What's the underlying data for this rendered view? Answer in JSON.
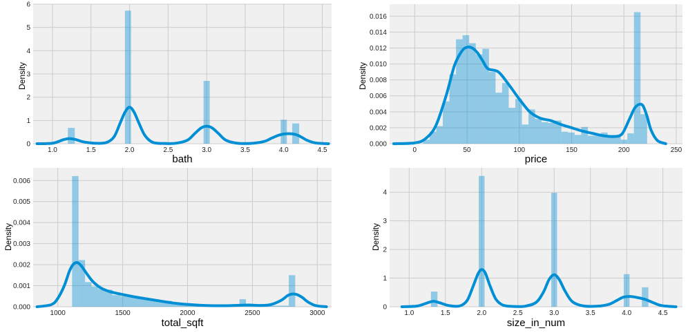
{
  "style": {
    "plot_background": "#f0f0f0",
    "grid_color": "#cbcbcb",
    "hist_color": "#008fd5",
    "hist_alpha": 0.4,
    "kde_color": "#008fd5"
  },
  "chart_data": [
    {
      "type": "histogram+kde",
      "xlabel": "bath",
      "ylabel": "Density",
      "xlim": [
        0.75,
        4.62
      ],
      "ylim": [
        0,
        6
      ],
      "xticks": [
        1.0,
        1.5,
        2.0,
        2.5,
        3.0,
        3.5,
        4.0,
        4.5
      ],
      "yticks": [
        0,
        1,
        2,
        3,
        4,
        5,
        6
      ],
      "xtick_labels": [
        "1.0",
        "1.5",
        "2.0",
        "2.5",
        "3.0",
        "3.5",
        "4.0",
        "4.5"
      ],
      "ytick_labels": [
        "0",
        "1",
        "2",
        "3",
        "4",
        "5",
        "6"
      ],
      "bins": [
        {
          "x0": 1.2,
          "x1": 1.29,
          "density": 0.68
        },
        {
          "x0": 1.94,
          "x1": 2.02,
          "density": 5.72
        },
        {
          "x0": 2.96,
          "x1": 3.04,
          "density": 2.7
        },
        {
          "x0": 3.96,
          "x1": 4.04,
          "density": 1.03
        },
        {
          "x0": 4.11,
          "x1": 4.2,
          "density": 0.87
        }
      ],
      "kde": {
        "x": [
          0.8,
          1.0,
          1.1,
          1.15,
          1.22,
          1.3,
          1.4,
          1.55,
          1.7,
          1.8,
          1.88,
          1.94,
          2.0,
          2.06,
          2.12,
          2.2,
          2.3,
          2.45,
          2.6,
          2.75,
          2.85,
          2.93,
          3.0,
          3.07,
          3.15,
          3.25,
          3.4,
          3.6,
          3.75,
          3.85,
          3.95,
          4.05,
          4.15,
          4.22,
          4.3,
          4.4,
          4.5,
          4.58
        ],
        "y": [
          0.0,
          0.02,
          0.12,
          0.18,
          0.22,
          0.18,
          0.08,
          0.02,
          0.05,
          0.3,
          0.9,
          1.35,
          1.57,
          1.35,
          0.9,
          0.35,
          0.06,
          0.01,
          0.02,
          0.15,
          0.45,
          0.68,
          0.75,
          0.68,
          0.45,
          0.15,
          0.02,
          0.02,
          0.1,
          0.25,
          0.38,
          0.43,
          0.4,
          0.3,
          0.15,
          0.04,
          0.01,
          0.0
        ]
      }
    },
    {
      "type": "histogram+kde",
      "xlabel": "price",
      "ylabel": "Density",
      "xlim": [
        -24,
        256
      ],
      "ylim": [
        0,
        0.0175
      ],
      "xticks": [
        0,
        50,
        100,
        150,
        200,
        250
      ],
      "yticks": [
        0,
        0.002,
        0.004,
        0.006,
        0.008,
        0.01,
        0.012,
        0.014,
        0.016
      ],
      "xtick_labels": [
        "0",
        "50",
        "100",
        "150",
        "200",
        "250"
      ],
      "ytick_labels": [
        "0.000",
        "0.002",
        "0.004",
        "0.006",
        "0.008",
        "0.010",
        "0.012",
        "0.014",
        "0.016"
      ],
      "bins": [
        {
          "x0": 8,
          "x1": 14.3,
          "density": 0.0005
        },
        {
          "x0": 14.3,
          "x1": 20.6,
          "density": 0.0015
        },
        {
          "x0": 20.6,
          "x1": 26.9,
          "density": 0.0022
        },
        {
          "x0": 26.9,
          "x1": 33.2,
          "density": 0.0053
        },
        {
          "x0": 33.2,
          "x1": 39.5,
          "density": 0.0087
        },
        {
          "x0": 39.5,
          "x1": 45.8,
          "density": 0.0131
        },
        {
          "x0": 45.8,
          "x1": 52.1,
          "density": 0.0136
        },
        {
          "x0": 52.1,
          "x1": 58.4,
          "density": 0.0126
        },
        {
          "x0": 58.4,
          "x1": 64.7,
          "density": 0.0112
        },
        {
          "x0": 64.7,
          "x1": 71.0,
          "density": 0.0119
        },
        {
          "x0": 71.0,
          "x1": 77.3,
          "density": 0.009
        },
        {
          "x0": 77.3,
          "x1": 83.6,
          "density": 0.0064
        },
        {
          "x0": 83.6,
          "x1": 89.9,
          "density": 0.0076
        },
        {
          "x0": 89.9,
          "x1": 96.2,
          "density": 0.0045
        },
        {
          "x0": 96.2,
          "x1": 102.5,
          "density": 0.0056
        },
        {
          "x0": 102.5,
          "x1": 108.8,
          "density": 0.0024
        },
        {
          "x0": 108.8,
          "x1": 115.1,
          "density": 0.0043
        },
        {
          "x0": 115.1,
          "x1": 121.4,
          "density": 0.0031
        },
        {
          "x0": 121.4,
          "x1": 127.7,
          "density": 0.0027
        },
        {
          "x0": 127.7,
          "x1": 134.0,
          "density": 0.0026
        },
        {
          "x0": 134.0,
          "x1": 140.3,
          "density": 0.0029
        },
        {
          "x0": 140.3,
          "x1": 146.6,
          "density": 0.0015
        },
        {
          "x0": 146.6,
          "x1": 152.9,
          "density": 0.0014
        },
        {
          "x0": 152.9,
          "x1": 159.2,
          "density": 0.0011
        },
        {
          "x0": 159.2,
          "x1": 165.5,
          "density": 0.0021
        },
        {
          "x0": 165.5,
          "x1": 171.8,
          "density": 0.001
        },
        {
          "x0": 171.8,
          "x1": 178.1,
          "density": 0.001
        },
        {
          "x0": 178.1,
          "x1": 184.4,
          "density": 0.0014
        },
        {
          "x0": 184.4,
          "x1": 190.7,
          "density": 0.0011
        },
        {
          "x0": 190.7,
          "x1": 197.0,
          "density": 0.001
        },
        {
          "x0": 197.0,
          "x1": 203.3,
          "density": 0.0005
        },
        {
          "x0": 203.3,
          "x1": 209.6,
          "density": 0.0013
        },
        {
          "x0": 209.6,
          "x1": 215.9,
          "density": 0.0165
        },
        {
          "x0": 215.9,
          "x1": 222.2,
          "density": 0.0037
        }
      ],
      "kde": {
        "x": [
          -20,
          0,
          10,
          20,
          30,
          38,
          45,
          50,
          55,
          60,
          65,
          70,
          80,
          90,
          100,
          110,
          120,
          130,
          140,
          150,
          160,
          170,
          180,
          190,
          198,
          205,
          210,
          214,
          218,
          222,
          226,
          232,
          240
        ],
        "y": [
          0.0,
          0.0001,
          0.0006,
          0.0022,
          0.006,
          0.0098,
          0.0116,
          0.0121,
          0.012,
          0.0114,
          0.0104,
          0.0094,
          0.009,
          0.0074,
          0.0056,
          0.004,
          0.0032,
          0.0029,
          0.0024,
          0.002,
          0.0016,
          0.0013,
          0.001,
          0.0009,
          0.0012,
          0.003,
          0.0044,
          0.0049,
          0.0048,
          0.0035,
          0.0017,
          0.0004,
          0.0
        ]
      }
    },
    {
      "type": "histogram+kde",
      "xlabel": "total_sqft",
      "ylabel": "Density",
      "xlim": [
        810,
        3110
      ],
      "ylim": [
        0,
        0.0066
      ],
      "xticks": [
        1000,
        1500,
        2000,
        2500,
        3000
      ],
      "yticks": [
        0,
        0.001,
        0.002,
        0.003,
        0.004,
        0.005,
        0.006
      ],
      "xtick_labels": [
        "1000",
        "1500",
        "2000",
        "2500",
        "3000"
      ],
      "ytick_labels": [
        "0.000",
        "0.001",
        "0.002",
        "0.003",
        "0.004",
        "0.005",
        "0.006"
      ],
      "bins": [
        {
          "x0": 1110,
          "x1": 1160,
          "density": 0.00621
        },
        {
          "x0": 1160,
          "x1": 1210,
          "density": 0.00222
        },
        {
          "x0": 1210,
          "x1": 1260,
          "density": 0.00117
        },
        {
          "x0": 1260,
          "x1": 1310,
          "density": 0.00096
        },
        {
          "x0": 1310,
          "x1": 1360,
          "density": 0.00085
        },
        {
          "x0": 1360,
          "x1": 1420,
          "density": 0.00081
        },
        {
          "x0": 1420,
          "x1": 1480,
          "density": 0.00055
        },
        {
          "x0": 1480,
          "x1": 1540,
          "density": 0.0005
        },
        {
          "x0": 1540,
          "x1": 1620,
          "density": 0.00046
        },
        {
          "x0": 1620,
          "x1": 1700,
          "density": 0.0004
        },
        {
          "x0": 1700,
          "x1": 1790,
          "density": 0.00035
        },
        {
          "x0": 1790,
          "x1": 1880,
          "density": 0.00028
        },
        {
          "x0": 1880,
          "x1": 1960,
          "density": 0.0002
        },
        {
          "x0": 1960,
          "x1": 2050,
          "density": 0.00013
        },
        {
          "x0": 2050,
          "x1": 2150,
          "density": 8e-05
        },
        {
          "x0": 2150,
          "x1": 2250,
          "density": 5e-05
        },
        {
          "x0": 2250,
          "x1": 2400,
          "density": 4e-05
        },
        {
          "x0": 2400,
          "x1": 2450,
          "density": 0.00036
        },
        {
          "x0": 2450,
          "x1": 2600,
          "density": 4e-05
        },
        {
          "x0": 2600,
          "x1": 2780,
          "density": 5e-05
        },
        {
          "x0": 2780,
          "x1": 2830,
          "density": 0.0015
        }
      ],
      "kde": {
        "x": [
          840,
          950,
          1000,
          1050,
          1090,
          1120,
          1150,
          1180,
          1220,
          1270,
          1330,
          1400,
          1500,
          1600,
          1700,
          1800,
          1900,
          2000,
          2100,
          2200,
          2300,
          2400,
          2480,
          2560,
          2640,
          2720,
          2780,
          2830,
          2880,
          2930,
          2990,
          3070
        ],
        "y": [
          0.0,
          0.0001,
          0.0004,
          0.001,
          0.0017,
          0.00202,
          0.0021,
          0.00195,
          0.0016,
          0.0012,
          0.0009,
          0.00072,
          0.00058,
          0.00046,
          0.00036,
          0.00026,
          0.00017,
          0.00011,
          7e-05,
          5e-05,
          5e-05,
          7e-05,
          8e-05,
          6e-05,
          0.0001,
          0.0003,
          0.00056,
          0.0006,
          0.00046,
          0.00022,
          5e-05,
          0.0
        ]
      }
    },
    {
      "type": "histogram+kde",
      "xlabel": "size_in_num",
      "ylabel": "Density",
      "xlim": [
        0.73,
        4.77
      ],
      "ylim": [
        0,
        4.85
      ],
      "xticks": [
        1.0,
        1.5,
        2.0,
        2.5,
        3.0,
        3.5,
        4.0,
        4.5
      ],
      "yticks": [
        0,
        1,
        2,
        3,
        4
      ],
      "xtick_labels": [
        "1.0",
        "1.5",
        "2.0",
        "2.5",
        "3.0",
        "3.5",
        "4.0",
        "4.5"
      ],
      "ytick_labels": [
        "0",
        "1",
        "2",
        "3",
        "4"
      ],
      "bins": [
        {
          "x0": 1.3,
          "x1": 1.39,
          "density": 0.53
        },
        {
          "x0": 1.96,
          "x1": 2.04,
          "density": 4.57
        },
        {
          "x0": 2.96,
          "x1": 3.04,
          "density": 3.98
        },
        {
          "x0": 3.96,
          "x1": 4.04,
          "density": 1.14
        },
        {
          "x0": 4.21,
          "x1": 4.3,
          "density": 0.68
        }
      ],
      "kde": {
        "x": [
          0.9,
          1.1,
          1.2,
          1.28,
          1.34,
          1.42,
          1.55,
          1.7,
          1.8,
          1.88,
          1.95,
          2.0,
          2.05,
          2.12,
          2.2,
          2.3,
          2.45,
          2.6,
          2.75,
          2.85,
          2.93,
          3.0,
          3.07,
          3.15,
          3.25,
          3.4,
          3.6,
          3.75,
          3.85,
          3.95,
          4.05,
          4.15,
          4.25,
          4.35,
          4.45,
          4.55,
          4.68
        ],
        "y": [
          0.0,
          0.02,
          0.09,
          0.16,
          0.19,
          0.14,
          0.04,
          0.03,
          0.22,
          0.7,
          1.15,
          1.3,
          1.18,
          0.7,
          0.25,
          0.05,
          0.01,
          0.02,
          0.15,
          0.5,
          0.95,
          1.12,
          0.95,
          0.55,
          0.18,
          0.03,
          0.02,
          0.08,
          0.2,
          0.33,
          0.36,
          0.32,
          0.26,
          0.16,
          0.06,
          0.02,
          0.0
        ]
      }
    }
  ]
}
